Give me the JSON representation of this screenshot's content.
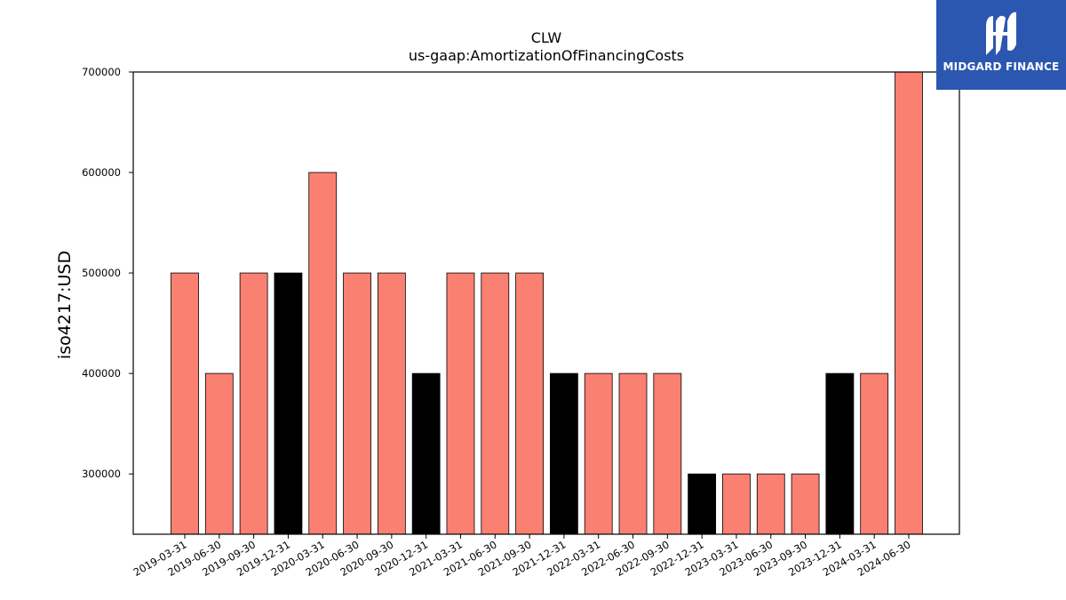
{
  "chart_data": {
    "type": "bar",
    "title": "CLW",
    "subtitle": "us-gaap:AmortizationOfFinancingCosts",
    "ylabel": "iso4217:USD",
    "xlabel": "",
    "ylim": [
      240000,
      700000
    ],
    "yticks": [
      300000,
      400000,
      500000,
      600000,
      700000
    ],
    "categories": [
      "2019-03-31",
      "2019-06-30",
      "2019-09-30",
      "2019-12-31",
      "2020-03-31",
      "2020-06-30",
      "2020-09-30",
      "2020-12-31",
      "2021-03-31",
      "2021-06-30",
      "2021-09-30",
      "2021-12-31",
      "2022-03-31",
      "2022-06-30",
      "2022-09-30",
      "2022-12-31",
      "2023-03-31",
      "2023-06-30",
      "2023-09-30",
      "2023-12-31",
      "2024-03-31",
      "2024-06-30"
    ],
    "values": [
      500000,
      400000,
      500000,
      500000,
      600000,
      500000,
      500000,
      400000,
      500000,
      500000,
      500000,
      400000,
      400000,
      400000,
      400000,
      300000,
      300000,
      300000,
      300000,
      400000,
      400000,
      700000
    ],
    "bar_colors": [
      "#fa8072",
      "#fa8072",
      "#fa8072",
      "#000000",
      "#fa8072",
      "#fa8072",
      "#fa8072",
      "#000000",
      "#fa8072",
      "#fa8072",
      "#fa8072",
      "#000000",
      "#fa8072",
      "#fa8072",
      "#fa8072",
      "#000000",
      "#fa8072",
      "#fa8072",
      "#fa8072",
      "#000000",
      "#fa8072",
      "#fa8072"
    ],
    "grid": false,
    "legend": "none"
  },
  "logo": {
    "text": "MIDGARD FINANCE",
    "background": "#2c57b1",
    "icon": "midgard-logo-icon"
  }
}
